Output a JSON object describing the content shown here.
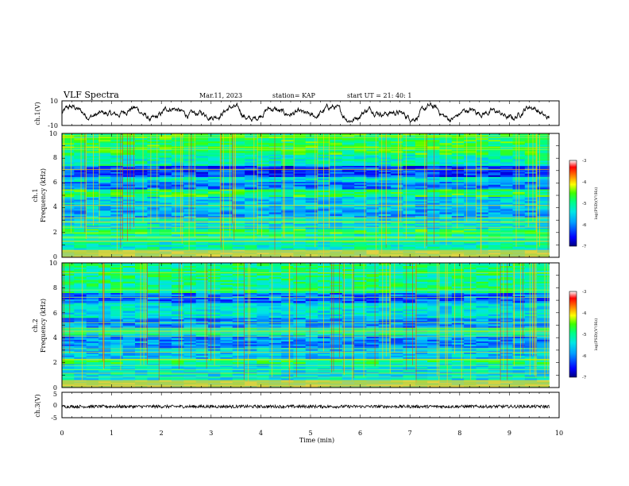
{
  "header": {
    "title": "VLF Spectra",
    "date": "Mar.11, 2023",
    "station": "station= KAP",
    "start": "start  UT =   21: 40: 1"
  },
  "colorbar": {
    "ticks": [
      "-3",
      "-4",
      "-5",
      "-6",
      "-7"
    ],
    "label": "log(PSD)(V²/Hz)",
    "colors": [
      "#000080",
      "#0000ff",
      "#00a0ff",
      "#00e5e5",
      "#00ff80",
      "#40ff00",
      "#ffff00",
      "#ff8000",
      "#ff0000",
      "#ffffff"
    ]
  },
  "chart_data": [
    {
      "type": "line",
      "panel": "ch1-waveform",
      "ylabel": "ch.1(V)",
      "ylim": [
        -10,
        10
      ],
      "ytick_labels": [
        "10",
        "-10"
      ],
      "xlim": [
        0,
        10
      ],
      "description_values": {
        "y_min": -10,
        "y_max": 10,
        "typical_range": [
          -5,
          5
        ]
      }
    },
    {
      "type": "heatmap",
      "panel": "ch1-spectrogram",
      "ylabel_line1": "ch.1",
      "ylabel_line2": "Frequency (kHz)",
      "ylim": [
        0,
        10
      ],
      "ytick_labels": [
        "0",
        "2",
        "4",
        "6",
        "8",
        "10"
      ],
      "xlim": [
        0,
        9.8
      ],
      "zlim": [
        -7,
        -3
      ],
      "bands": [
        {
          "f": [
            0.0,
            0.6
          ],
          "z": -4.6
        },
        {
          "f": [
            0.6,
            1.9
          ],
          "z": -5.2
        },
        {
          "f": [
            1.9,
            2.3
          ],
          "z": -4.8
        },
        {
          "f": [
            2.3,
            3.2
          ],
          "z": -5.4
        },
        {
          "f": [
            3.2,
            3.9
          ],
          "z": -5.8
        },
        {
          "f": [
            3.9,
            4.9
          ],
          "z": -5.6
        },
        {
          "f": [
            4.9,
            5.5
          ],
          "z": -4.8
        },
        {
          "f": [
            5.5,
            6.1
          ],
          "z": -6.0
        },
        {
          "f": [
            6.1,
            6.5
          ],
          "z": -5.4
        },
        {
          "f": [
            6.5,
            7.4
          ],
          "z": -6.3
        },
        {
          "f": [
            7.4,
            8.3
          ],
          "z": -5.2
        },
        {
          "f": [
            8.3,
            10.0
          ],
          "z": -4.8
        }
      ]
    },
    {
      "type": "heatmap",
      "panel": "ch2-spectrogram",
      "ylabel_line1": "ch.2",
      "ylabel_line2": "Frequency (kHz)",
      "ylim": [
        0,
        10
      ],
      "ytick_labels": [
        "0",
        "2",
        "4",
        "6",
        "8",
        "10"
      ],
      "xlim": [
        0,
        9.8
      ],
      "zlim": [
        -7,
        -3
      ],
      "bands": [
        {
          "f": [
            0.0,
            0.6
          ],
          "z": -4.6
        },
        {
          "f": [
            0.6,
            1.9
          ],
          "z": -5.4
        },
        {
          "f": [
            1.9,
            2.3
          ],
          "z": -4.9
        },
        {
          "f": [
            2.3,
            3.2
          ],
          "z": -5.6
        },
        {
          "f": [
            3.2,
            4.2
          ],
          "z": -5.9
        },
        {
          "f": [
            4.2,
            4.8
          ],
          "z": -5.2
        },
        {
          "f": [
            4.8,
            5.6
          ],
          "z": -5.9
        },
        {
          "f": [
            5.6,
            6.8
          ],
          "z": -5.4
        },
        {
          "f": [
            6.8,
            7.6
          ],
          "z": -6.1
        },
        {
          "f": [
            7.6,
            10.0
          ],
          "z": -5.0
        }
      ]
    },
    {
      "type": "line",
      "panel": "ch3-waveform",
      "ylabel": "ch.3(V)",
      "ylim": [
        -5,
        5
      ],
      "ytick_labels": [
        "5",
        "0",
        "-5"
      ],
      "xlim": [
        0,
        10
      ],
      "description_values": {
        "y_min": -1.2,
        "y_max": 0.0
      }
    }
  ],
  "xaxis": {
    "label": "Time (min)",
    "ticks": [
      "0",
      "1",
      "2",
      "3",
      "4",
      "5",
      "6",
      "7",
      "8",
      "9",
      "10"
    ]
  }
}
